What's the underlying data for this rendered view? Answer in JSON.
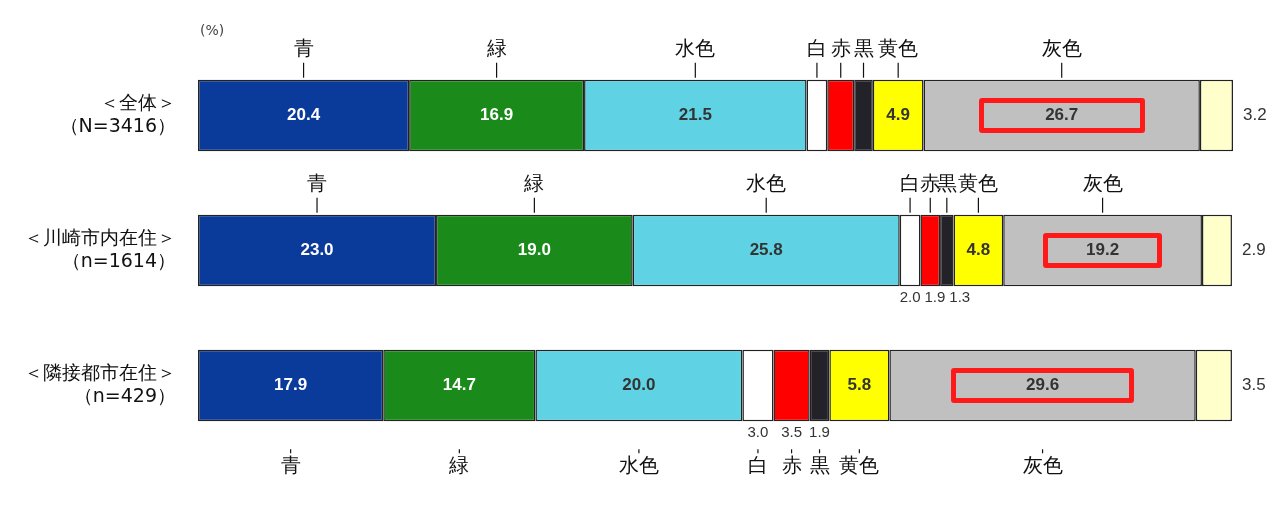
{
  "chart_data": {
    "type": "bar",
    "orientation": "horizontal",
    "stacked": true,
    "legend": false,
    "tick_labels": "y",
    "annotations": [
      "(%)"
    ],
    "categories": [
      "＜全体＞（N=3416）",
      "＜川崎市内在住＞（n=1614）",
      "＜隣接都市在住＞（n=429）"
    ],
    "series": [
      {
        "name": "青",
        "color": "#0a3a9a",
        "values": [
          20.4,
          23.0,
          17.9
        ],
        "value_labels": [
          "20.4",
          "23.0",
          "17.9"
        ]
      },
      {
        "name": "緑",
        "color": "#1a8a1a",
        "values": [
          16.9,
          19.0,
          14.7
        ],
        "value_labels": [
          "16.9",
          "19.0",
          "14.7"
        ]
      },
      {
        "name": "水色",
        "color": "#5fd3e3",
        "values": [
          21.5,
          25.8,
          20.0
        ],
        "value_labels": [
          "21.5",
          "25.8",
          "20.0"
        ]
      },
      {
        "name": "白",
        "color": "#ffffff",
        "values": [
          2.0,
          2.0,
          3.0
        ],
        "value_labels": [
          null,
          "2.0",
          "3.0"
        ]
      },
      {
        "name": "赤",
        "color": "#ff0000",
        "values": [
          2.6,
          1.9,
          3.5
        ],
        "value_labels": [
          null,
          "1.9",
          "3.5"
        ]
      },
      {
        "name": "黒",
        "color": "#222228",
        "values": [
          1.8,
          1.3,
          1.9
        ],
        "value_labels": [
          null,
          "1.3",
          "1.9"
        ]
      },
      {
        "name": "黄色",
        "color": "#ffff00",
        "values": [
          4.9,
          4.8,
          5.8
        ],
        "value_labels": [
          "4.9",
          "4.8",
          "5.8"
        ]
      },
      {
        "name": "灰色",
        "color": "#c0c0c0",
        "values": [
          26.7,
          19.2,
          29.6
        ],
        "value_labels": [
          "26.7",
          "19.2",
          "29.6"
        ]
      },
      {
        "color": "#ffffcc",
        "values": [
          3.2,
          2.9,
          3.5
        ],
        "value_labels": [
          "3.2",
          "2.9",
          "3.5"
        ]
      }
    ]
  }
}
